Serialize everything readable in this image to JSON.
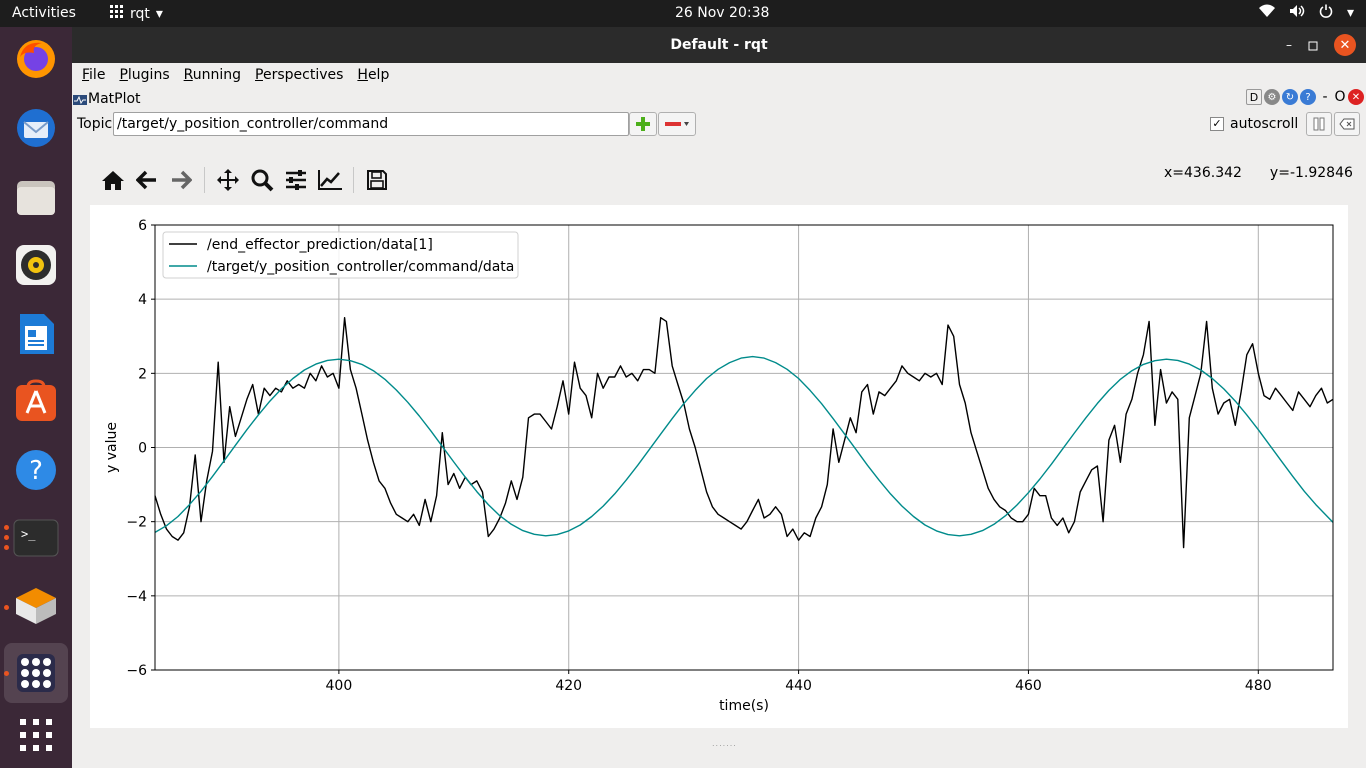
{
  "topbar": {
    "activities": "Activities",
    "app_name": "rqt",
    "clock": "26 Nov  20:38"
  },
  "dock": {
    "items": [
      "firefox-icon",
      "thunderbird-icon",
      "files-icon",
      "rhythmbox-icon",
      "writer-icon",
      "software-icon",
      "help-icon",
      "terminal-icon",
      "blender-icon",
      "rqt-icon",
      "show-apps-icon"
    ]
  },
  "window": {
    "title": "Default - rqt"
  },
  "menubar": {
    "items": [
      "File",
      "Plugins",
      "Running",
      "Perspectives",
      "Help"
    ]
  },
  "plugin": {
    "name": "MatPlot",
    "d_label": "D",
    "close_o": "O"
  },
  "topic": {
    "label": "Topic",
    "value": "/target/y_position_controller/command"
  },
  "autoscroll": {
    "label": "autoscroll",
    "checked": "✓"
  },
  "coords": {
    "x": "x=436.342",
    "y": "y=-1.92846"
  },
  "chart_data": {
    "type": "line",
    "xlabel": "time(s)",
    "ylabel": "y value",
    "xlim": [
      384.0,
      486.5
    ],
    "ylim": [
      -6,
      6
    ],
    "xticks": [
      400,
      420,
      440,
      460,
      480
    ],
    "yticks": [
      -6,
      -4,
      -2,
      0,
      2,
      4,
      6
    ],
    "grid": true,
    "legend_position": "upper-left",
    "series": [
      {
        "name": "/end_effector_prediction/data[1]",
        "color": "#000000",
        "x": [
          384.0,
          384.5,
          385.0,
          385.5,
          386.0,
          386.5,
          387.0,
          387.5,
          388.0,
          388.5,
          389.0,
          389.5,
          390.0,
          390.5,
          391.0,
          391.5,
          392.0,
          392.5,
          393.0,
          393.5,
          394.0,
          394.5,
          395.0,
          395.5,
          396.0,
          396.5,
          397.0,
          397.5,
          398.0,
          398.5,
          399.0,
          399.5,
          400.0,
          400.5,
          401.0,
          401.5,
          402.0,
          402.5,
          403.0,
          403.5,
          404.0,
          404.5,
          405.0,
          405.5,
          406.0,
          406.5,
          407.0,
          407.5,
          408.0,
          408.5,
          409.0,
          409.5,
          410.0,
          410.5,
          411.0,
          411.5,
          412.0,
          412.5,
          413.0,
          413.5,
          414.0,
          414.5,
          415.0,
          415.5,
          416.0,
          416.5,
          417.0,
          417.5,
          418.0,
          418.5,
          419.0,
          419.5,
          420.0,
          420.5,
          421.0,
          421.5,
          422.0,
          422.5,
          423.0,
          423.5,
          424.0,
          424.5,
          425.0,
          425.5,
          426.0,
          426.5,
          427.0,
          427.5,
          428.0,
          428.5,
          429.0,
          429.5,
          430.0,
          430.5,
          431.0,
          431.5,
          432.0,
          432.5,
          433.0,
          433.5,
          434.0,
          434.5,
          435.0,
          435.5,
          436.0,
          436.5,
          437.0,
          437.5,
          438.0,
          438.5,
          439.0,
          439.5,
          440.0,
          440.5,
          441.0,
          441.5,
          442.0,
          442.5,
          443.0,
          443.5,
          444.0,
          444.5,
          445.0,
          445.5,
          446.0,
          446.5,
          447.0,
          447.5,
          448.0,
          448.5,
          449.0,
          449.5,
          450.0,
          450.5,
          451.0,
          451.5,
          452.0,
          452.5,
          453.0,
          453.5,
          454.0,
          454.5,
          455.0,
          455.5,
          456.0,
          456.5,
          457.0,
          457.5,
          458.0,
          458.5,
          459.0,
          459.5,
          460.0,
          460.5,
          461.0,
          461.5,
          462.0,
          462.5,
          463.0,
          463.5,
          464.0,
          464.5,
          465.0,
          465.5,
          466.0,
          466.5,
          467.0,
          467.5,
          468.0,
          468.5,
          469.0,
          469.5,
          470.0,
          470.5,
          471.0,
          471.5,
          472.0,
          472.5,
          473.0,
          473.5,
          474.0,
          474.5,
          475.0,
          475.5,
          476.0,
          476.5,
          477.0,
          477.5,
          478.0,
          478.5,
          479.0,
          479.5,
          480.0,
          480.5,
          481.0,
          481.5,
          482.0,
          482.5,
          483.0,
          483.5,
          484.0,
          484.5,
          485.0,
          485.5,
          486.0,
          486.5
        ],
        "y": [
          -1.3,
          -1.8,
          -2.2,
          -2.4,
          -2.5,
          -2.3,
          -1.6,
          -0.2,
          -2.0,
          -0.9,
          -0.1,
          2.3,
          -0.4,
          1.1,
          0.3,
          0.8,
          1.3,
          1.7,
          0.9,
          1.6,
          1.4,
          1.6,
          1.5,
          1.8,
          1.6,
          1.7,
          1.6,
          2.0,
          1.8,
          2.2,
          1.9,
          2.0,
          1.6,
          3.5,
          2.1,
          1.6,
          0.9,
          0.2,
          -0.4,
          -0.9,
          -1.1,
          -1.5,
          -1.8,
          -1.9,
          -2.0,
          -1.8,
          -2.1,
          -1.4,
          -2.0,
          -1.3,
          0.4,
          -1.0,
          -0.7,
          -1.1,
          -0.8,
          -1.0,
          -0.9,
          -1.2,
          -2.4,
          -2.2,
          -1.9,
          -1.5,
          -0.9,
          -1.4,
          -0.8,
          0.8,
          0.9,
          0.9,
          0.7,
          0.5,
          1.1,
          1.8,
          0.9,
          2.3,
          1.6,
          1.4,
          0.8,
          2.0,
          1.6,
          1.9,
          1.9,
          2.2,
          1.9,
          2.0,
          1.8,
          2.1,
          2.1,
          2.0,
          3.5,
          3.4,
          2.2,
          1.7,
          1.2,
          0.5,
          0.0,
          -0.6,
          -1.2,
          -1.6,
          -1.8,
          -1.9,
          -2.0,
          -2.1,
          -2.2,
          -2.0,
          -1.7,
          -1.4,
          -1.9,
          -1.8,
          -1.6,
          -1.8,
          -2.4,
          -2.2,
          -2.5,
          -2.3,
          -2.4,
          -1.9,
          -1.6,
          -1.0,
          0.5,
          -0.4,
          0.2,
          0.8,
          0.4,
          1.5,
          1.7,
          0.9,
          1.5,
          1.4,
          1.6,
          1.8,
          2.2,
          2.0,
          1.9,
          1.8,
          2.0,
          1.9,
          2.0,
          1.7,
          3.3,
          3.0,
          1.7,
          1.2,
          0.4,
          -0.1,
          -0.6,
          -1.1,
          -1.4,
          -1.6,
          -1.7,
          -1.9,
          -2.0,
          -2.0,
          -1.8,
          -1.1,
          -1.3,
          -1.3,
          -1.9,
          -2.1,
          -1.9,
          -2.3,
          -2.0,
          -1.2,
          -0.9,
          -0.6,
          -0.5,
          -2.0,
          0.2,
          0.6,
          -0.4,
          0.9,
          1.3,
          2.0,
          2.5,
          3.4,
          0.6,
          2.1,
          1.2,
          1.5,
          1.3,
          -2.7,
          0.8,
          1.4,
          2.0,
          3.4,
          1.6,
          0.9,
          1.2,
          1.3,
          0.6,
          1.5,
          2.5,
          2.8,
          2.0,
          1.4,
          1.3,
          1.6,
          1.4,
          1.2,
          1.0,
          1.5,
          1.3,
          1.1,
          1.4,
          1.6,
          1.2,
          1.3
        ]
      },
      {
        "name": "/target/y_position_controller/command/data",
        "color": "#008b8b",
        "x": [
          384.0,
          385.0,
          386.0,
          387.0,
          388.0,
          389.0,
          390.0,
          391.0,
          392.0,
          393.0,
          394.0,
          395.0,
          396.0,
          397.0,
          398.0,
          399.0,
          400.0,
          401.0,
          402.0,
          403.0,
          404.0,
          405.0,
          406.0,
          407.0,
          408.0,
          409.0,
          410.0,
          411.0,
          412.0,
          413.0,
          414.0,
          415.0,
          416.0,
          417.0,
          418.0,
          419.0,
          420.0,
          421.0,
          422.0,
          423.0,
          424.0,
          425.0,
          426.0,
          427.0,
          428.0,
          429.0,
          430.0,
          431.0,
          432.0,
          433.0,
          434.0,
          435.0,
          436.0,
          437.0,
          438.0,
          439.0,
          440.0,
          441.0,
          442.0,
          443.0,
          444.0,
          445.0,
          446.0,
          447.0,
          448.0,
          449.0,
          450.0,
          451.0,
          452.0,
          453.0,
          454.0,
          455.0,
          456.0,
          457.0,
          458.0,
          459.0,
          460.0,
          461.0,
          462.0,
          463.0,
          464.0,
          465.0,
          466.0,
          467.0,
          468.0,
          469.0,
          470.0,
          471.0,
          472.0,
          473.0,
          474.0,
          475.0,
          476.0,
          477.0,
          478.0,
          479.0,
          480.0,
          481.0,
          482.0,
          483.0,
          484.0,
          485.0,
          486.0,
          486.5
        ],
        "y": [
          -2.29,
          -2.11,
          -1.86,
          -1.54,
          -1.18,
          -0.78,
          -0.36,
          0.06,
          0.48,
          0.88,
          1.25,
          1.58,
          1.86,
          2.09,
          2.25,
          2.35,
          2.38,
          2.34,
          2.24,
          2.07,
          1.84,
          1.55,
          1.22,
          0.85,
          0.45,
          0.03,
          -0.39,
          -0.8,
          -1.19,
          -1.54,
          -1.84,
          -2.07,
          -2.24,
          -2.34,
          -2.38,
          -2.35,
          -2.25,
          -2.09,
          -1.86,
          -1.58,
          -1.25,
          -0.88,
          -0.48,
          -0.06,
          0.36,
          0.78,
          1.18,
          1.54,
          1.86,
          2.11,
          2.29,
          2.41,
          2.45,
          2.41,
          2.29,
          2.11,
          1.86,
          1.54,
          1.18,
          0.78,
          0.36,
          -0.06,
          -0.48,
          -0.88,
          -1.25,
          -1.58,
          -1.86,
          -2.09,
          -2.25,
          -2.35,
          -2.38,
          -2.34,
          -2.24,
          -2.07,
          -1.84,
          -1.55,
          -1.22,
          -0.85,
          -0.45,
          -0.03,
          0.39,
          0.8,
          1.19,
          1.54,
          1.84,
          2.07,
          2.24,
          2.34,
          2.38,
          2.35,
          2.25,
          2.09,
          1.86,
          1.58,
          1.25,
          0.88,
          0.48,
          0.06,
          -0.36,
          -0.78,
          -1.18,
          -1.54,
          -1.86,
          -2.02
        ]
      }
    ]
  }
}
